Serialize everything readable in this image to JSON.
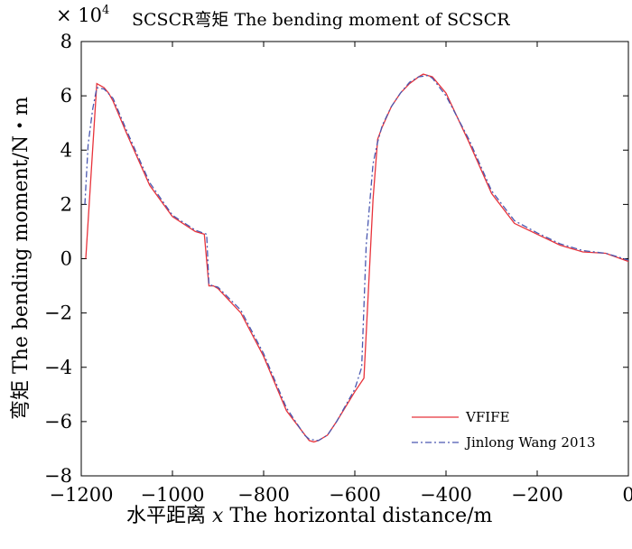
{
  "chart_data": {
    "type": "line",
    "title": "SCSCR弯矩 The bending moment of SCSCR",
    "xlabel_prefix": "水平距离 ",
    "xlabel_var": "x",
    "xlabel_suffix": " The horizontal distance/m",
    "ylabel": "弯矩 The bending moment/N・m",
    "y_multiplier_base": "× 10",
    "y_multiplier_exp": "4",
    "xlim": [
      -1200,
      0
    ],
    "ylim": [
      -8,
      8
    ],
    "xticks": [
      -1200,
      -1000,
      -800,
      -600,
      -400,
      -200,
      0
    ],
    "xtick_labels": [
      "−1200",
      "−1000",
      "−800",
      "−600",
      "−400",
      "−200",
      "0"
    ],
    "yticks": [
      -8,
      -6,
      -4,
      -2,
      0,
      2,
      4,
      6,
      8
    ],
    "ytick_labels": [
      "−8",
      "−6",
      "−4",
      "−2",
      "0",
      "2",
      "4",
      "6",
      "8"
    ],
    "grid": false,
    "legend_position": "bottom-right",
    "series": [
      {
        "name": "VFIFE",
        "color": "#e8333b",
        "style": "solid",
        "x": [
          -1190,
          -1166,
          -1150,
          -1140,
          -1130,
          -1100,
          -1050,
          -1000,
          -950,
          -930,
          -920,
          -910,
          -900,
          -850,
          -800,
          -750,
          -700,
          -690,
          -680,
          -660,
          -640,
          -600,
          -580,
          -560,
          -550,
          -540,
          -520,
          -500,
          -480,
          -460,
          -450,
          -430,
          -400,
          -350,
          -300,
          -250,
          -200,
          -150,
          -100,
          -50,
          0
        ],
        "y": [
          0.0,
          6.45,
          6.3,
          6.1,
          5.8,
          4.6,
          2.7,
          1.55,
          1.0,
          0.9,
          -1.0,
          -1.0,
          -1.1,
          -2.0,
          -3.6,
          -5.6,
          -6.7,
          -6.75,
          -6.7,
          -6.5,
          -6.0,
          -4.9,
          -4.4,
          2.2,
          4.4,
          4.85,
          5.6,
          6.1,
          6.45,
          6.7,
          6.8,
          6.7,
          6.1,
          4.3,
          2.4,
          1.3,
          0.9,
          0.5,
          0.25,
          0.2,
          -0.1
        ]
      },
      {
        "name": "Jinlong Wang 2013",
        "color": "#4a58b0",
        "style": "dashdot",
        "x": [
          -1192,
          -1185,
          -1175,
          -1166,
          -1150,
          -1130,
          -1100,
          -1050,
          -1000,
          -950,
          -925,
          -920,
          -910,
          -900,
          -850,
          -800,
          -750,
          -710,
          -700,
          -680,
          -660,
          -640,
          -600,
          -585,
          -575,
          -560,
          -550,
          -540,
          -520,
          -500,
          -480,
          -460,
          -440,
          -430,
          -400,
          -350,
          -300,
          -250,
          -200,
          -150,
          -100,
          -50,
          0
        ],
        "y": [
          2.0,
          4.2,
          5.5,
          6.3,
          6.25,
          5.9,
          4.7,
          2.8,
          1.6,
          1.05,
          0.9,
          -0.95,
          -1.0,
          -1.05,
          -1.9,
          -3.5,
          -5.5,
          -6.5,
          -6.65,
          -6.7,
          -6.5,
          -6.0,
          -4.8,
          -4.0,
          0.5,
          3.5,
          4.3,
          4.9,
          5.6,
          6.1,
          6.5,
          6.7,
          6.75,
          6.65,
          6.0,
          4.4,
          2.5,
          1.4,
          0.95,
          0.55,
          0.3,
          0.2,
          -0.05
        ]
      }
    ]
  }
}
